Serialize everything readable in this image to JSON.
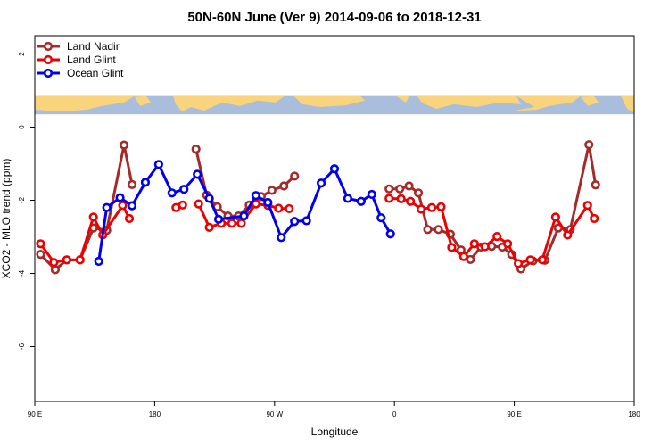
{
  "chart_data": {
    "type": "line",
    "title": "50N-60N June (Ver 9)   2014-09-06 to 2018-12-31",
    "xlabel": "Longitude",
    "ylabel": "XCO2 - MLO trend (ppm)",
    "xlim": [
      -90,
      180
    ],
    "ylim": [
      -7.5,
      2.5
    ],
    "grid": false,
    "legend_position": "top-left",
    "x_ticks": [
      {
        "value": -90,
        "label": "90 E"
      },
      {
        "value": -36,
        "label": "180"
      },
      {
        "value": 18,
        "label": "90 W"
      },
      {
        "value": 72,
        "label": "0"
      },
      {
        "value": 126,
        "label": "90 E"
      },
      {
        "value": 180,
        "label": "180"
      }
    ],
    "y_ticks": [
      {
        "value": 2,
        "label": "2"
      },
      {
        "value": 0,
        "label": "0"
      },
      {
        "value": -2,
        "label": "-2"
      },
      {
        "value": -4,
        "label": "-4"
      },
      {
        "value": -6,
        "label": "-6"
      }
    ],
    "map_band": {
      "ymin": 0.35,
      "ymax": 0.85,
      "ocean_color": "#a8bedc",
      "land_color": "#fad47c"
    },
    "series": [
      {
        "name": "Land Nadir",
        "color": "#a52a2a",
        "segments": [
          [
            [
              -87.4,
              -3.48
            ],
            [
              -80.8,
              -3.9
            ],
            [
              -75.6,
              -3.63
            ],
            [
              -69.6,
              -3.63
            ],
            [
              -63.6,
              -2.76
            ],
            [
              -57.6,
              -2.82
            ],
            [
              -49.8,
              -0.49
            ],
            [
              -46.2,
              -1.57
            ]
          ],
          [
            [
              -17.4,
              -0.6
            ],
            [
              -12.6,
              -1.86
            ],
            [
              -7.8,
              -2.18
            ],
            [
              -3,
              -2.43
            ],
            [
              1.8,
              -2.43
            ],
            [
              6.6,
              -2.13
            ],
            [
              12,
              -1.9
            ],
            [
              16.8,
              -1.73
            ],
            [
              22.2,
              -1.61
            ],
            [
              27,
              -1.34
            ]
          ],
          [
            [
              69.6,
              -1.69
            ],
            [
              74.4,
              -1.69
            ],
            [
              78.6,
              -1.61
            ],
            [
              82.8,
              -1.8
            ],
            [
              87,
              -2.8
            ],
            [
              91.8,
              -2.8
            ],
            [
              97.2,
              -2.93
            ],
            [
              102,
              -3.36
            ],
            [
              106.2,
              -3.62
            ],
            [
              111,
              -3.28
            ],
            [
              115.8,
              -3.26
            ],
            [
              120.6,
              -3.28
            ],
            [
              124.8,
              -3.48
            ],
            [
              129,
              -3.88
            ],
            [
              134.4,
              -3.66
            ],
            [
              139.8,
              -3.64
            ],
            [
              145.8,
              -2.76
            ],
            [
              151.2,
              -2.8
            ],
            [
              159.6,
              -0.48
            ],
            [
              162.6,
              -1.58
            ]
          ]
        ]
      },
      {
        "name": "Land Glint",
        "color": "#ee0000",
        "segments": [
          [
            [
              -87.4,
              -3.19
            ],
            [
              -81.4,
              -3.7
            ],
            [
              -75.6,
              -3.63
            ],
            [
              -69.6,
              -3.63
            ],
            [
              -63.6,
              -2.46
            ],
            [
              -59.4,
              -2.95
            ],
            [
              -50.4,
              -2.14
            ],
            [
              -47.4,
              -2.5
            ]
          ],
          [
            [
              -26.4,
              -2.2
            ],
            [
              -23.4,
              -2.13
            ]
          ],
          [
            [
              -16.2,
              -2.1
            ],
            [
              -11.4,
              -2.74
            ],
            [
              -6,
              -2.63
            ],
            [
              -1.2,
              -2.63
            ],
            [
              3,
              -2.63
            ],
            [
              9.6,
              -2.1
            ],
            [
              15,
              -2.14
            ],
            [
              19.8,
              -2.22
            ],
            [
              24.6,
              -2.23
            ]
          ],
          [
            [
              69.6,
              -1.95
            ],
            [
              75,
              -1.96
            ],
            [
              79.2,
              -2.03
            ],
            [
              84,
              -2.24
            ],
            [
              88.8,
              -2.2
            ],
            [
              93,
              -2.18
            ],
            [
              97.8,
              -3.29
            ],
            [
              103.2,
              -3.54
            ],
            [
              108,
              -3.19
            ],
            [
              112.8,
              -3.27
            ],
            [
              118.2,
              -2.99
            ],
            [
              123,
              -3.19
            ],
            [
              127.8,
              -3.73
            ],
            [
              133.2,
              -3.63
            ],
            [
              138.6,
              -3.63
            ],
            [
              144.6,
              -2.46
            ],
            [
              150,
              -2.95
            ],
            [
              159,
              -2.14
            ],
            [
              162,
              -2.5
            ]
          ]
        ]
      },
      {
        "name": "Ocean Glint",
        "color": "#0000ee",
        "segments": [
          [
            [
              -61.2,
              -3.67
            ],
            [
              -57.6,
              -2.2
            ],
            [
              -51.6,
              -1.93
            ],
            [
              -46.2,
              -2.15
            ],
            [
              -40.2,
              -1.51
            ],
            [
              -34.2,
              -1.02
            ],
            [
              -28.2,
              -1.8
            ],
            [
              -22.8,
              -1.7
            ],
            [
              -16.8,
              -1.29
            ],
            [
              -11.4,
              -1.95
            ],
            [
              -7.2,
              -2.52
            ],
            [
              4.2,
              -2.43
            ],
            [
              9.6,
              -1.87
            ],
            [
              15,
              -2.06
            ],
            [
              21,
              -3.02
            ],
            [
              27,
              -2.58
            ],
            [
              32.4,
              -2.56
            ],
            [
              39,
              -1.53
            ],
            [
              45,
              -1.14
            ],
            [
              51,
              -1.95
            ],
            [
              57,
              -2.03
            ],
            [
              61.8,
              -1.84
            ],
            [
              66,
              -2.48
            ],
            [
              70.2,
              -2.92
            ]
          ]
        ]
      }
    ]
  }
}
